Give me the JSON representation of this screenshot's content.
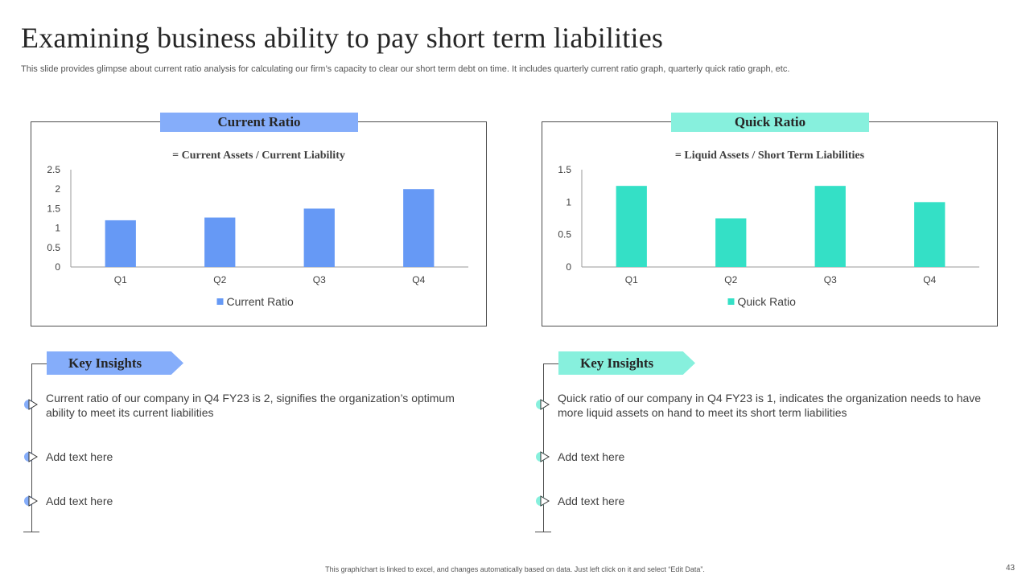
{
  "header": {
    "title": "Examining business ability to pay short term liabilities",
    "subtitle": "This slide provides glimpse about current ratio analysis for calculating our firm’s capacity to clear our short term debt on time. It includes quarterly current ratio graph, quarterly quick ratio graph, etc."
  },
  "colors": {
    "current_bar": "#6699f5",
    "current_tab": "#85adfa",
    "quick_bar": "#34e0c6",
    "quick_tab": "#87f0dd"
  },
  "chart_data": [
    {
      "type": "bar",
      "tab_label": "Current Ratio",
      "title": "= Current Assets / Current Liability",
      "categories": [
        "Q1",
        "Q2",
        "Q3",
        "Q4"
      ],
      "series": [
        {
          "name": "Current Ratio",
          "values": [
            1.2,
            1.27,
            1.5,
            2.0
          ]
        }
      ],
      "yticks": [
        "0",
        "0.5",
        "1",
        "1.5",
        "2",
        "2.5"
      ],
      "ylim": [
        0,
        2.5
      ],
      "legend": "bottom",
      "grid": false
    },
    {
      "type": "bar",
      "tab_label": "Quick Ratio",
      "title": "= Liquid Assets / Short Term Liabilities",
      "categories": [
        "Q1",
        "Q2",
        "Q3",
        "Q4"
      ],
      "series": [
        {
          "name": "Quick Ratio",
          "values": [
            1.25,
            0.75,
            1.25,
            1.0
          ]
        }
      ],
      "yticks": [
        "0",
        "0.5",
        "1",
        "1.5"
      ],
      "ylim": [
        0,
        1.5
      ],
      "legend": "bottom",
      "grid": false
    }
  ],
  "insights": {
    "left": {
      "heading": "Key Insights",
      "items": [
        "Current ratio of our company in Q4 FY23 is 2, signifies the organization’s optimum ability to meet its current liabilities",
        "Add text here",
        "Add text here"
      ]
    },
    "right": {
      "heading": "Key Insights",
      "items": [
        "Quick ratio of our company in Q4 FY23 is 1, indicates the organization needs to have more liquid assets on hand to meet its short term liabilities",
        "Add text here",
        "Add text here"
      ]
    }
  },
  "footer": {
    "note": "This graph/chart is linked to excel, and changes automatically based on data. Just left click on it and select “Edit Data”.",
    "page_number": "43"
  }
}
